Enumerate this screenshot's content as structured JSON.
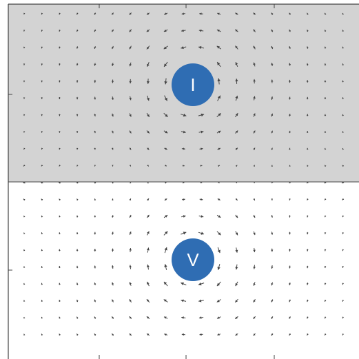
{
  "panels": [
    {
      "id": "upper",
      "fill": "#d3d3d3",
      "vortex_label": "I",
      "rotation": "counterclockwise"
    },
    {
      "id": "lower",
      "fill": "#ffffff",
      "vortex_label": "V",
      "rotation": "clockwise"
    }
  ],
  "colors": {
    "vortex_fill": "#2f6db3",
    "arrow": "#444444",
    "frame": "#444444"
  }
}
